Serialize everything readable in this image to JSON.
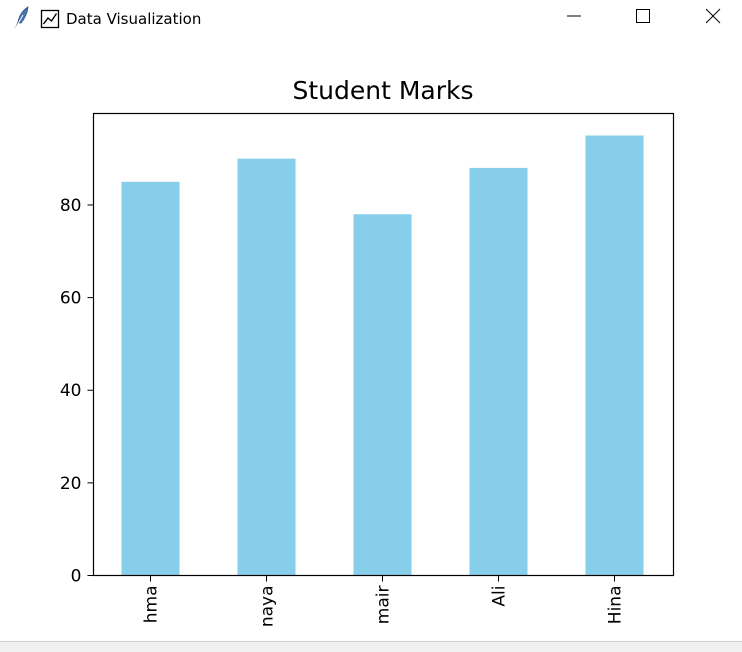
{
  "window": {
    "title": "Data Visualization",
    "icons": {
      "app": "feather-icon",
      "title": "chart-line-icon"
    },
    "controls": {
      "minimize": "minimize-icon",
      "maximize": "maximize-icon",
      "close": "close-icon"
    }
  },
  "chart_data": {
    "type": "bar",
    "title": "Student Marks",
    "xlabel": "",
    "ylabel": "",
    "categories": [
      "hma",
      "naya",
      "mair",
      "Ali",
      "Hina"
    ],
    "values": [
      85,
      90,
      78,
      88,
      95
    ],
    "ylim": [
      0,
      99.75
    ],
    "yticks": [
      0,
      20,
      40,
      60,
      80
    ],
    "bar_color": "#87ceeb",
    "grid": false,
    "legend": "none"
  }
}
